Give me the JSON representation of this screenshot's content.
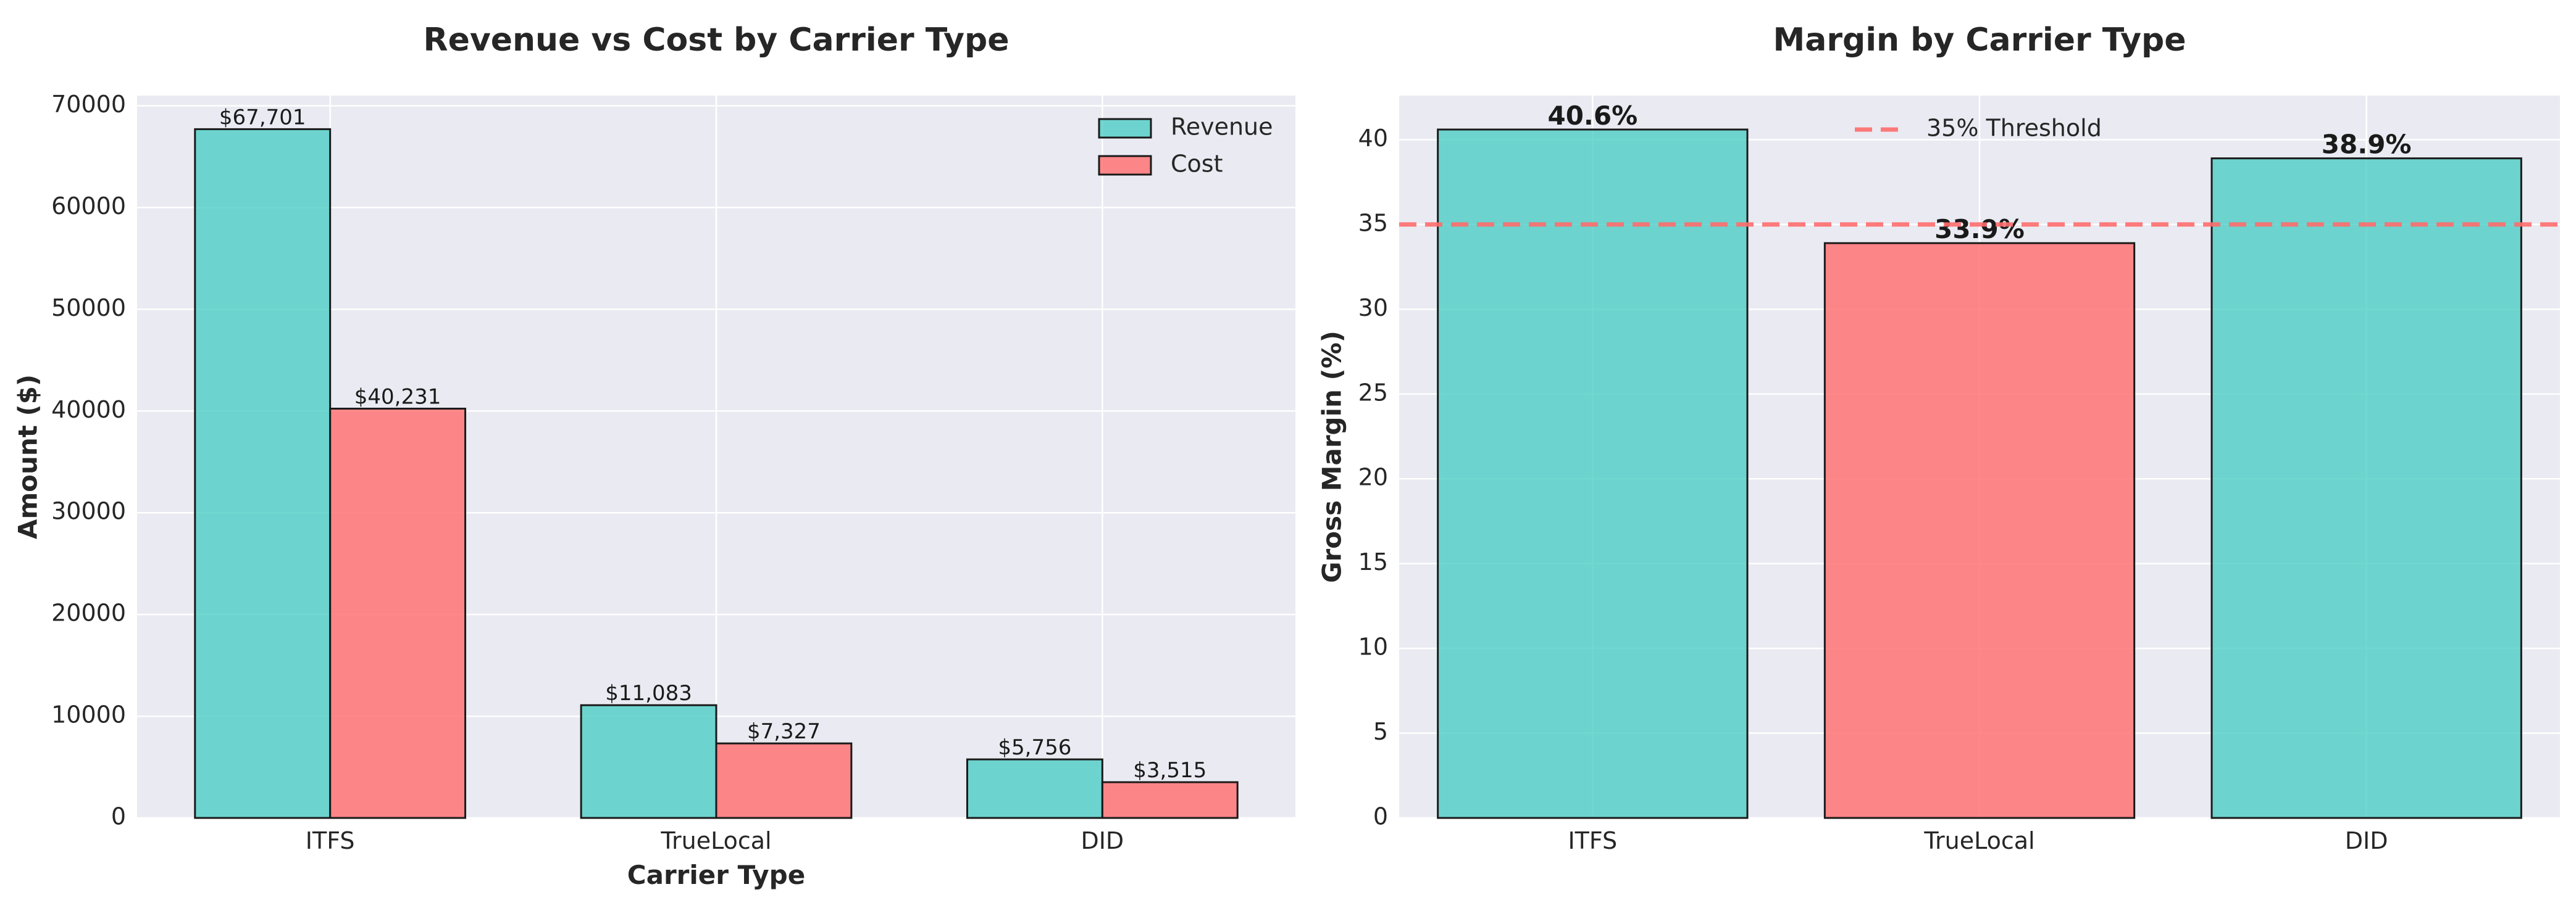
{
  "chart_data": [
    {
      "type": "bar",
      "title": "Revenue vs Cost by Carrier Type",
      "xlabel": "Carrier Type",
      "ylabel": "Amount ($)",
      "categories": [
        "ITFS",
        "TrueLocal",
        "DID"
      ],
      "series": [
        {
          "name": "Revenue",
          "color": "#4ecdc4",
          "values": [
            67701,
            11083,
            5756
          ],
          "labels": [
            "$67,701",
            "$11,083",
            "$5,756"
          ]
        },
        {
          "name": "Cost",
          "color": "#ff6b6b",
          "values": [
            40231,
            7327,
            3515
          ],
          "labels": [
            "$40,231",
            "$7,327",
            "$3,515"
          ]
        }
      ],
      "ylim": [
        0,
        71000
      ],
      "yticks": [
        0,
        10000,
        20000,
        30000,
        40000,
        50000,
        60000,
        70000
      ],
      "ytick_labels": [
        "0",
        "10000",
        "20000",
        "30000",
        "40000",
        "50000",
        "60000",
        "70000"
      ],
      "grid": true,
      "legend": "top-right"
    },
    {
      "type": "bar",
      "title": "Margin by Carrier Type",
      "xlabel": "",
      "ylabel": "Gross Margin (%)",
      "categories": [
        "ITFS",
        "TrueLocal",
        "DID"
      ],
      "values": [
        40.6,
        33.9,
        38.9
      ],
      "value_labels": [
        "40.6%",
        "33.9%",
        "38.9%"
      ],
      "colors": [
        "#4ecdc4",
        "#ff6b6b",
        "#4ecdc4"
      ],
      "threshold": {
        "value": 35,
        "label": "35% Threshold",
        "color": "#ff6b6b"
      },
      "ylim": [
        0,
        42.6
      ],
      "yticks": [
        0,
        5,
        10,
        15,
        20,
        25,
        30,
        35,
        40
      ],
      "ytick_labels": [
        "0",
        "5",
        "10",
        "15",
        "20",
        "25",
        "30",
        "35",
        "40"
      ],
      "grid": true,
      "legend": "top-center"
    }
  ]
}
